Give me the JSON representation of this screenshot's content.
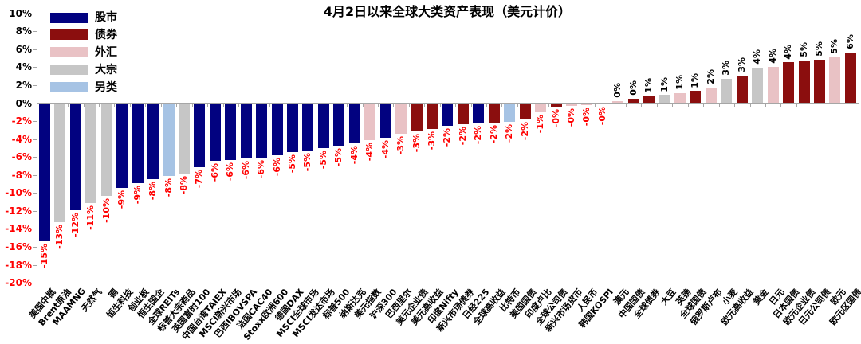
{
  "chart": {
    "title": "4月2日以来全球大类资产表现（美元计价）"
  },
  "chart_data": {
    "type": "bar",
    "title": "4月2日以来全球大类资产表现（美元计价）",
    "unit": "%",
    "ylim": [
      -20,
      10
    ],
    "y_ticks": [
      "10%",
      "8%",
      "6%",
      "4%",
      "2%",
      "0%",
      "-2%",
      "-4%",
      "-6%",
      "-8%",
      "-10%",
      "-12%",
      "-14%",
      "-16%",
      "-18%",
      "-20%"
    ],
    "grid": "off",
    "legend_position": "top-left",
    "negative_label_color": "#ff0000",
    "positive_label_color": "#000000",
    "legend": [
      {
        "label": "股市",
        "color": "#020280"
      },
      {
        "label": "债券",
        "color": "#8b0e0e"
      },
      {
        "label": "外汇",
        "color": "#e9c2c5"
      },
      {
        "label": "大宗",
        "color": "#c6c6c6"
      },
      {
        "label": "另类",
        "color": "#a6c3e4"
      }
    ],
    "points": [
      {
        "label": "美国中概",
        "group": "股市",
        "value": -15.3,
        "value_label": "-15%"
      },
      {
        "label": "Brent原油",
        "group": "大宗",
        "value": -13.2,
        "value_label": "-13%"
      },
      {
        "label": "MAAMNG",
        "group": "股市",
        "value": -11.9,
        "value_label": "-12%"
      },
      {
        "label": "天然气",
        "group": "大宗",
        "value": -11.1,
        "value_label": "-11%"
      },
      {
        "label": "铜",
        "group": "大宗",
        "value": -10.3,
        "value_label": "-10%"
      },
      {
        "label": "恒生科技",
        "group": "股市",
        "value": -9.4,
        "value_label": "-9%"
      },
      {
        "label": "创业板",
        "group": "股市",
        "value": -8.9,
        "value_label": "-9%"
      },
      {
        "label": "恒生国企",
        "group": "股市",
        "value": -8.4,
        "value_label": "-8%"
      },
      {
        "label": "全球REITs",
        "group": "另类",
        "value": -8.1,
        "value_label": "-8%"
      },
      {
        "label": "标普大宗商品",
        "group": "大宗",
        "value": -7.8,
        "value_label": "-8%"
      },
      {
        "label": "英国富时100",
        "group": "股市",
        "value": -7.1,
        "value_label": "-7%"
      },
      {
        "label": "中国台湾TAIEX",
        "group": "股市",
        "value": -6.4,
        "value_label": "-6%"
      },
      {
        "label": "MSCI新兴市场",
        "group": "股市",
        "value": -6.3,
        "value_label": "-6%"
      },
      {
        "label": "巴西IBOVSPA",
        "group": "股市",
        "value": -6.1,
        "value_label": "-6%"
      },
      {
        "label": "法国CAC40",
        "group": "股市",
        "value": -6.0,
        "value_label": "-6%"
      },
      {
        "label": "Stoxx欧洲600",
        "group": "股市",
        "value": -5.8,
        "value_label": "-6%"
      },
      {
        "label": "德国DAX",
        "group": "股市",
        "value": -5.4,
        "value_label": "-5%"
      },
      {
        "label": "MSCI全球市场",
        "group": "股市",
        "value": -5.2,
        "value_label": "-5%"
      },
      {
        "label": "MSCI发达市场",
        "group": "股市",
        "value": -5.0,
        "value_label": "-5%"
      },
      {
        "label": "标普500",
        "group": "股市",
        "value": -4.7,
        "value_label": "-5%"
      },
      {
        "label": "纳斯达克",
        "group": "股市",
        "value": -4.4,
        "value_label": "-4%"
      },
      {
        "label": "美元指数",
        "group": "外汇",
        "value": -4.1,
        "value_label": "-4%"
      },
      {
        "label": "沪深300",
        "group": "股市",
        "value": -3.8,
        "value_label": "-4%"
      },
      {
        "label": "巴西里尔",
        "group": "外汇",
        "value": -3.4,
        "value_label": "-3%"
      },
      {
        "label": "美元企业债",
        "group": "债券",
        "value": -3.1,
        "value_label": "-3%"
      },
      {
        "label": "美元高收益",
        "group": "债券",
        "value": -2.8,
        "value_label": "-3%"
      },
      {
        "label": "印度Nifty",
        "group": "股市",
        "value": -2.5,
        "value_label": "-2%"
      },
      {
        "label": "新兴市场债券",
        "group": "债券",
        "value": -2.3,
        "value_label": "-2%"
      },
      {
        "label": "日经225",
        "group": "股市",
        "value": -2.2,
        "value_label": "-2%"
      },
      {
        "label": "全球高收益",
        "group": "债券",
        "value": -2.1,
        "value_label": "-2%"
      },
      {
        "label": "比特币",
        "group": "另类",
        "value": -2.0,
        "value_label": "-2%"
      },
      {
        "label": "美国国债",
        "group": "债券",
        "value": -1.8,
        "value_label": "-2%"
      },
      {
        "label": "印度卢比",
        "group": "外汇",
        "value": -1.0,
        "value_label": "-1%"
      },
      {
        "label": "全球公司债",
        "group": "债券",
        "value": -0.35,
        "value_label": "-0%"
      },
      {
        "label": "新兴市场货币",
        "group": "外汇",
        "value": -0.25,
        "value_label": "-0%"
      },
      {
        "label": "人民币",
        "group": "外汇",
        "value": -0.2,
        "value_label": "-0%"
      },
      {
        "label": "韩国KOSPI",
        "group": "股市",
        "value": -0.1,
        "value_label": "-0%"
      },
      {
        "label": "澳元",
        "group": "外汇",
        "value": 0.2,
        "value_label": "0%"
      },
      {
        "label": "中国国债",
        "group": "债券",
        "value": 0.45,
        "value_label": "0%"
      },
      {
        "label": "全球债券",
        "group": "债券",
        "value": 0.7,
        "value_label": "1%"
      },
      {
        "label": "大豆",
        "group": "大宗",
        "value": 0.85,
        "value_label": "1%"
      },
      {
        "label": "英镑",
        "group": "外汇",
        "value": 1.1,
        "value_label": "1%"
      },
      {
        "label": "全球国债",
        "group": "债券",
        "value": 1.3,
        "value_label": "1%"
      },
      {
        "label": "俄罗斯卢布",
        "group": "外汇",
        "value": 1.7,
        "value_label": "2%"
      },
      {
        "label": "小麦",
        "group": "大宗",
        "value": 2.7,
        "value_label": "3%"
      },
      {
        "label": "欧元高收益",
        "group": "债券",
        "value": 3.0,
        "value_label": "3%"
      },
      {
        "label": "黄金",
        "group": "大宗",
        "value": 3.9,
        "value_label": "4%"
      },
      {
        "label": "日元",
        "group": "外汇",
        "value": 4.0,
        "value_label": "4%"
      },
      {
        "label": "日本国债",
        "group": "债券",
        "value": 4.5,
        "value_label": "4%"
      },
      {
        "label": "欧元企业债",
        "group": "债券",
        "value": 4.7,
        "value_label": "5%"
      },
      {
        "label": "日元公司债",
        "group": "债券",
        "value": 4.8,
        "value_label": "5%"
      },
      {
        "label": "欧元",
        "group": "外汇",
        "value": 5.1,
        "value_label": "5%"
      },
      {
        "label": "欧元区国债",
        "group": "债券",
        "value": 5.6,
        "value_label": "6%"
      }
    ]
  }
}
